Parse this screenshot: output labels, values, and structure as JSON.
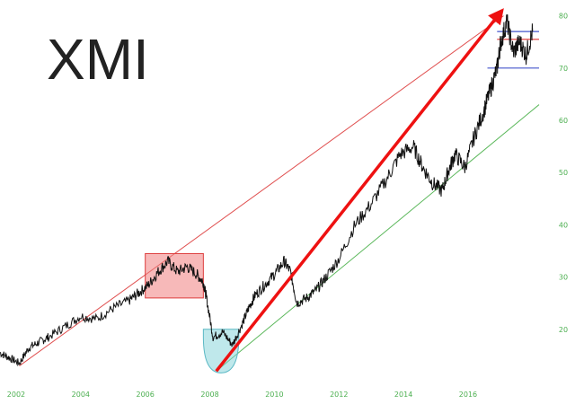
{
  "chart_data": {
    "type": "line",
    "title": "XMI",
    "xlabel": "",
    "ylabel": "",
    "xlim": [
      2001.5,
      2018.2
    ],
    "ylim": [
      10,
      82
    ],
    "x_ticks": [
      "2002",
      "2004",
      "2006",
      "2008",
      "2010",
      "2012",
      "2014",
      "2016"
    ],
    "y_ticks": [
      "20",
      "30",
      "40",
      "50",
      "60",
      "70",
      "80"
    ],
    "grid": false,
    "series": [
      {
        "color": "#111111",
        "x": [
          2001.5,
          2001.8,
          2002.1,
          2002.4,
          2002.7,
          2003.0,
          2003.5,
          2004.0,
          2004.5,
          2005.0,
          2005.5,
          2005.8,
          2006.1,
          2006.4,
          2006.7,
          2007.0,
          2007.3,
          2007.6,
          2007.8,
          2007.9,
          2008.1,
          2008.4,
          2008.7,
          2009.0,
          2009.2,
          2009.4,
          2009.7,
          2010.0,
          2010.3,
          2010.5,
          2010.7,
          2011.0,
          2011.3,
          2011.6,
          2012.0,
          2012.5,
          2013.0,
          2013.5,
          2013.9,
          2014.3,
          2014.6,
          2014.9,
          2015.2,
          2015.4,
          2015.6,
          2015.9,
          2016.2,
          2016.5,
          2016.7,
          2016.9,
          2017.0,
          2017.2,
          2017.4,
          2017.6,
          2017.8,
          2018.0
        ],
        "values": [
          15.5,
          14.5,
          13.5,
          16.5,
          17.5,
          18.5,
          20.5,
          22.5,
          22.0,
          24.0,
          25.5,
          27.0,
          28.5,
          31.0,
          33.0,
          31.0,
          32.0,
          30.5,
          29.0,
          26.0,
          18.5,
          19.5,
          17.0,
          21.0,
          24.0,
          26.5,
          28.5,
          30.5,
          33.0,
          31.0,
          25.0,
          26.0,
          27.5,
          30.0,
          33.5,
          40.0,
          44.0,
          49.0,
          53.5,
          55.0,
          51.0,
          48.0,
          46.5,
          50.5,
          53.5,
          51.0,
          57.0,
          62.0,
          66.0,
          70.0,
          74.5,
          79.0,
          73.0,
          75.0,
          72.5,
          77.0
        ]
      }
    ],
    "annotations": [
      {
        "kind": "line",
        "color": "#e05050",
        "from": {
          "x": 2002.1,
          "y": 13.0
        },
        "to": {
          "x": 2017.1,
          "y": 80.0
        }
      },
      {
        "kind": "arrow",
        "color": "#ee1111",
        "from": {
          "x": 2008.2,
          "y": 12.0
        },
        "to": {
          "x": 2017.05,
          "y": 81.0
        }
      },
      {
        "kind": "line",
        "color": "#5cb85c",
        "from": {
          "x": 2008.2,
          "y": 12.0
        },
        "to": {
          "x": 2018.2,
          "y": 63.0
        }
      },
      {
        "kind": "rect",
        "color": "#f08080",
        "x0": 2006.0,
        "x1": 2007.8,
        "y0": 26.0,
        "y1": 34.5
      },
      {
        "kind": "bowl",
        "color": "#7fd1d8",
        "x0": 2007.8,
        "x1": 2008.9,
        "y_top": 20.0,
        "y_bottom": 12.0
      },
      {
        "kind": "hline",
        "color": "#4455cc",
        "y": 77.0,
        "x0": 2016.9,
        "x1": 2018.2
      },
      {
        "kind": "hline",
        "color": "#dd3333",
        "y": 75.5,
        "x0": 2016.9,
        "x1": 2018.2
      },
      {
        "kind": "hline",
        "color": "#4455cc",
        "y": 70.0,
        "x0": 2016.6,
        "x1": 2018.2
      }
    ]
  }
}
